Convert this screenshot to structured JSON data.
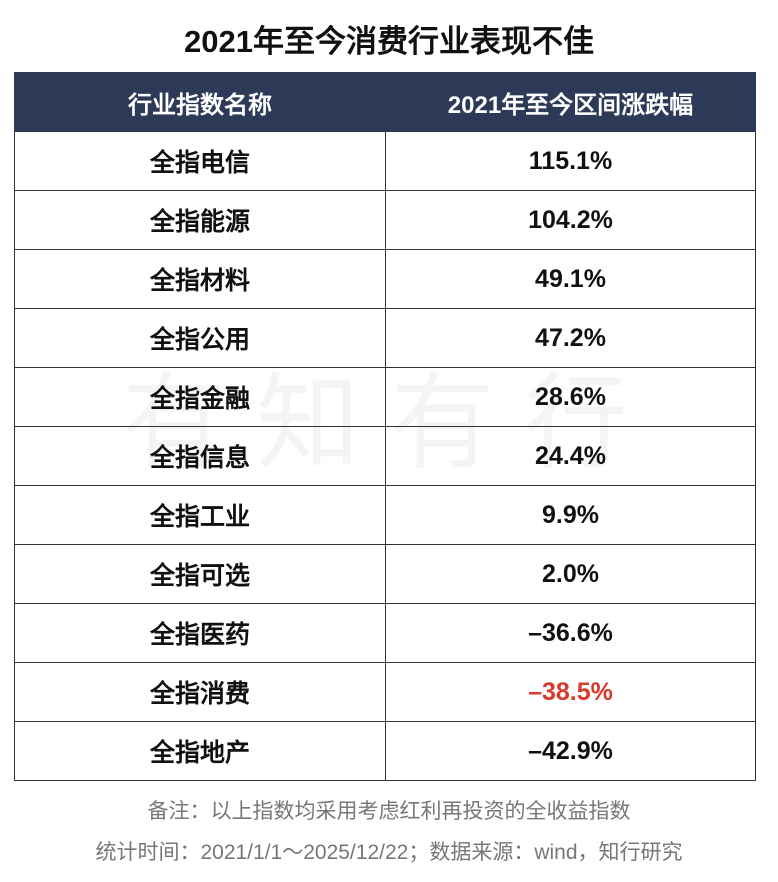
{
  "header": {
    "title": "2021年至今消费行业表现不佳"
  },
  "watermark": "有知有行",
  "table": {
    "columns": [
      "行业指数名称",
      "2021年至今区间涨跌幅"
    ],
    "rows": [
      {
        "name": "全指电信",
        "value": "115.1%"
      },
      {
        "name": "全指能源",
        "value": "104.2%"
      },
      {
        "name": "全指材料",
        "value": "49.1%"
      },
      {
        "name": "全指公用",
        "value": "47.2%"
      },
      {
        "name": "全指金融",
        "value": "28.6%"
      },
      {
        "name": "全指信息",
        "value": "24.4%"
      },
      {
        "name": "全指工业",
        "value": "9.9%"
      },
      {
        "name": "全指可选",
        "value": "2.0%"
      },
      {
        "name": "全指医药",
        "value": "–36.6%"
      },
      {
        "name": "全指消费",
        "value": "–38.5%",
        "color": "#d8392b"
      },
      {
        "name": "全指地产",
        "value": "–42.9%"
      }
    ]
  },
  "footer": {
    "note": "备注：以上指数均采用考虑红利再投资的全收益指数",
    "source": "统计时间：2021/1/1～2025/12/22；数据来源：wind，知行研究"
  }
}
